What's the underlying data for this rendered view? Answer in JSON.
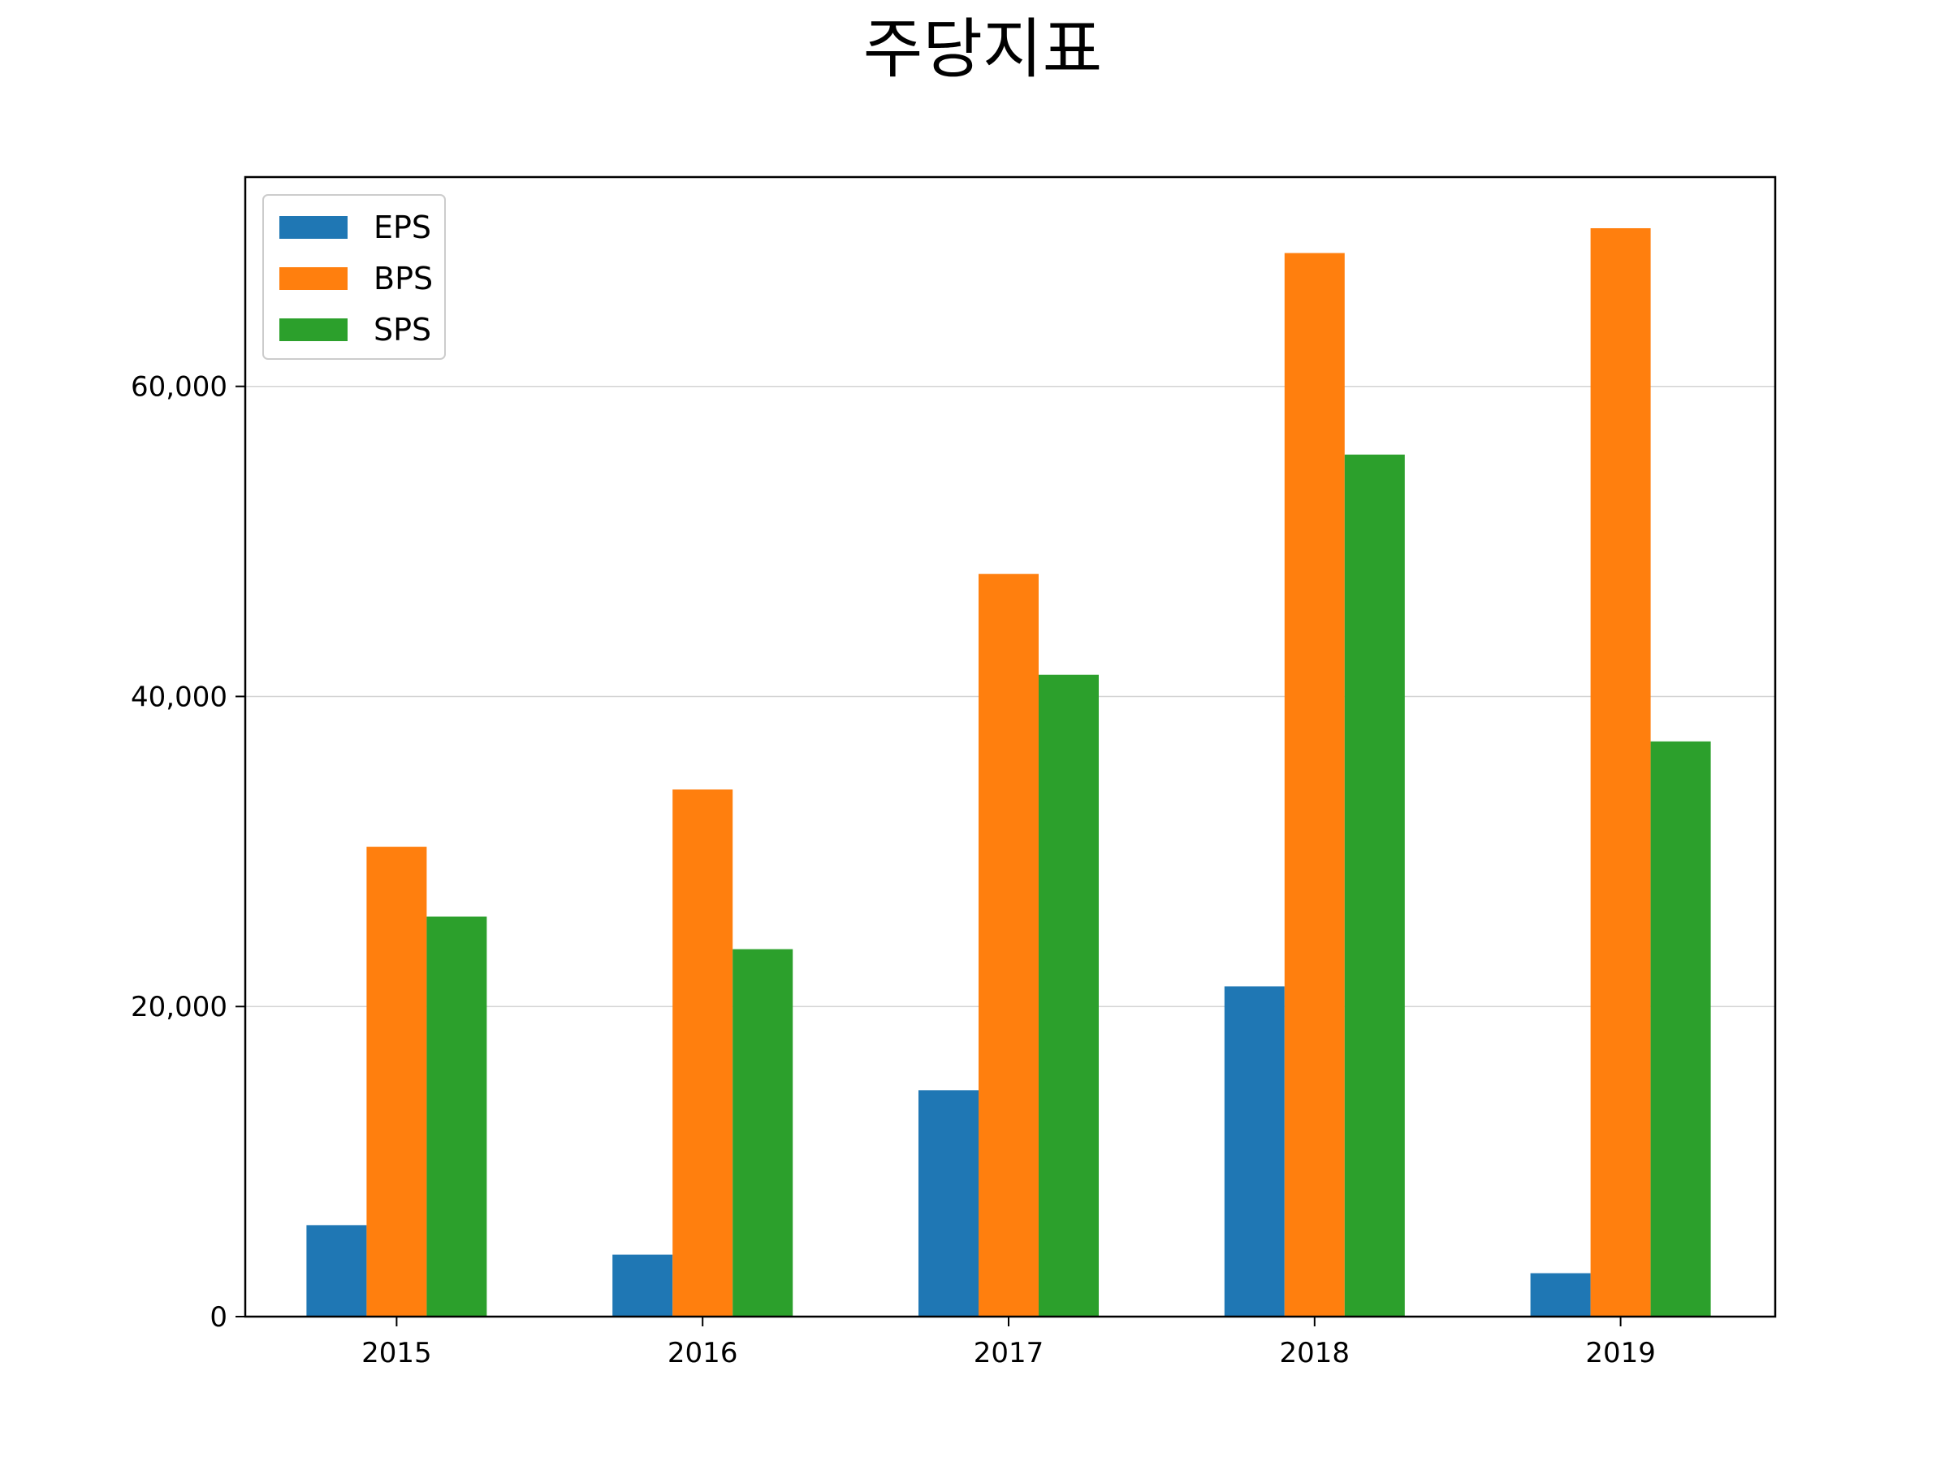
{
  "chart_data": {
    "type": "bar",
    "title": "주당지표",
    "xlabel": "",
    "ylabel": "",
    "categories": [
      "2015",
      "2016",
      "2017",
      "2018",
      "2019"
    ],
    "series": [
      {
        "name": "EPS",
        "color": "#1f77b4",
        "values": [
          5900,
          4000,
          14600,
          21300,
          2800
        ]
      },
      {
        "name": "BPS",
        "color": "#ff7f0e",
        "values": [
          30300,
          34000,
          47900,
          68600,
          70200
        ]
      },
      {
        "name": "SPS",
        "color": "#2ca02c",
        "values": [
          25800,
          23700,
          41400,
          55600,
          37100
        ]
      }
    ],
    "ylim": [
      0,
      73500
    ],
    "yticks": [
      0,
      20000,
      40000,
      60000
    ],
    "ytick_labels": [
      "0",
      "20,000",
      "40,000",
      "60,000"
    ],
    "grid": "y",
    "legend": "top-left"
  }
}
